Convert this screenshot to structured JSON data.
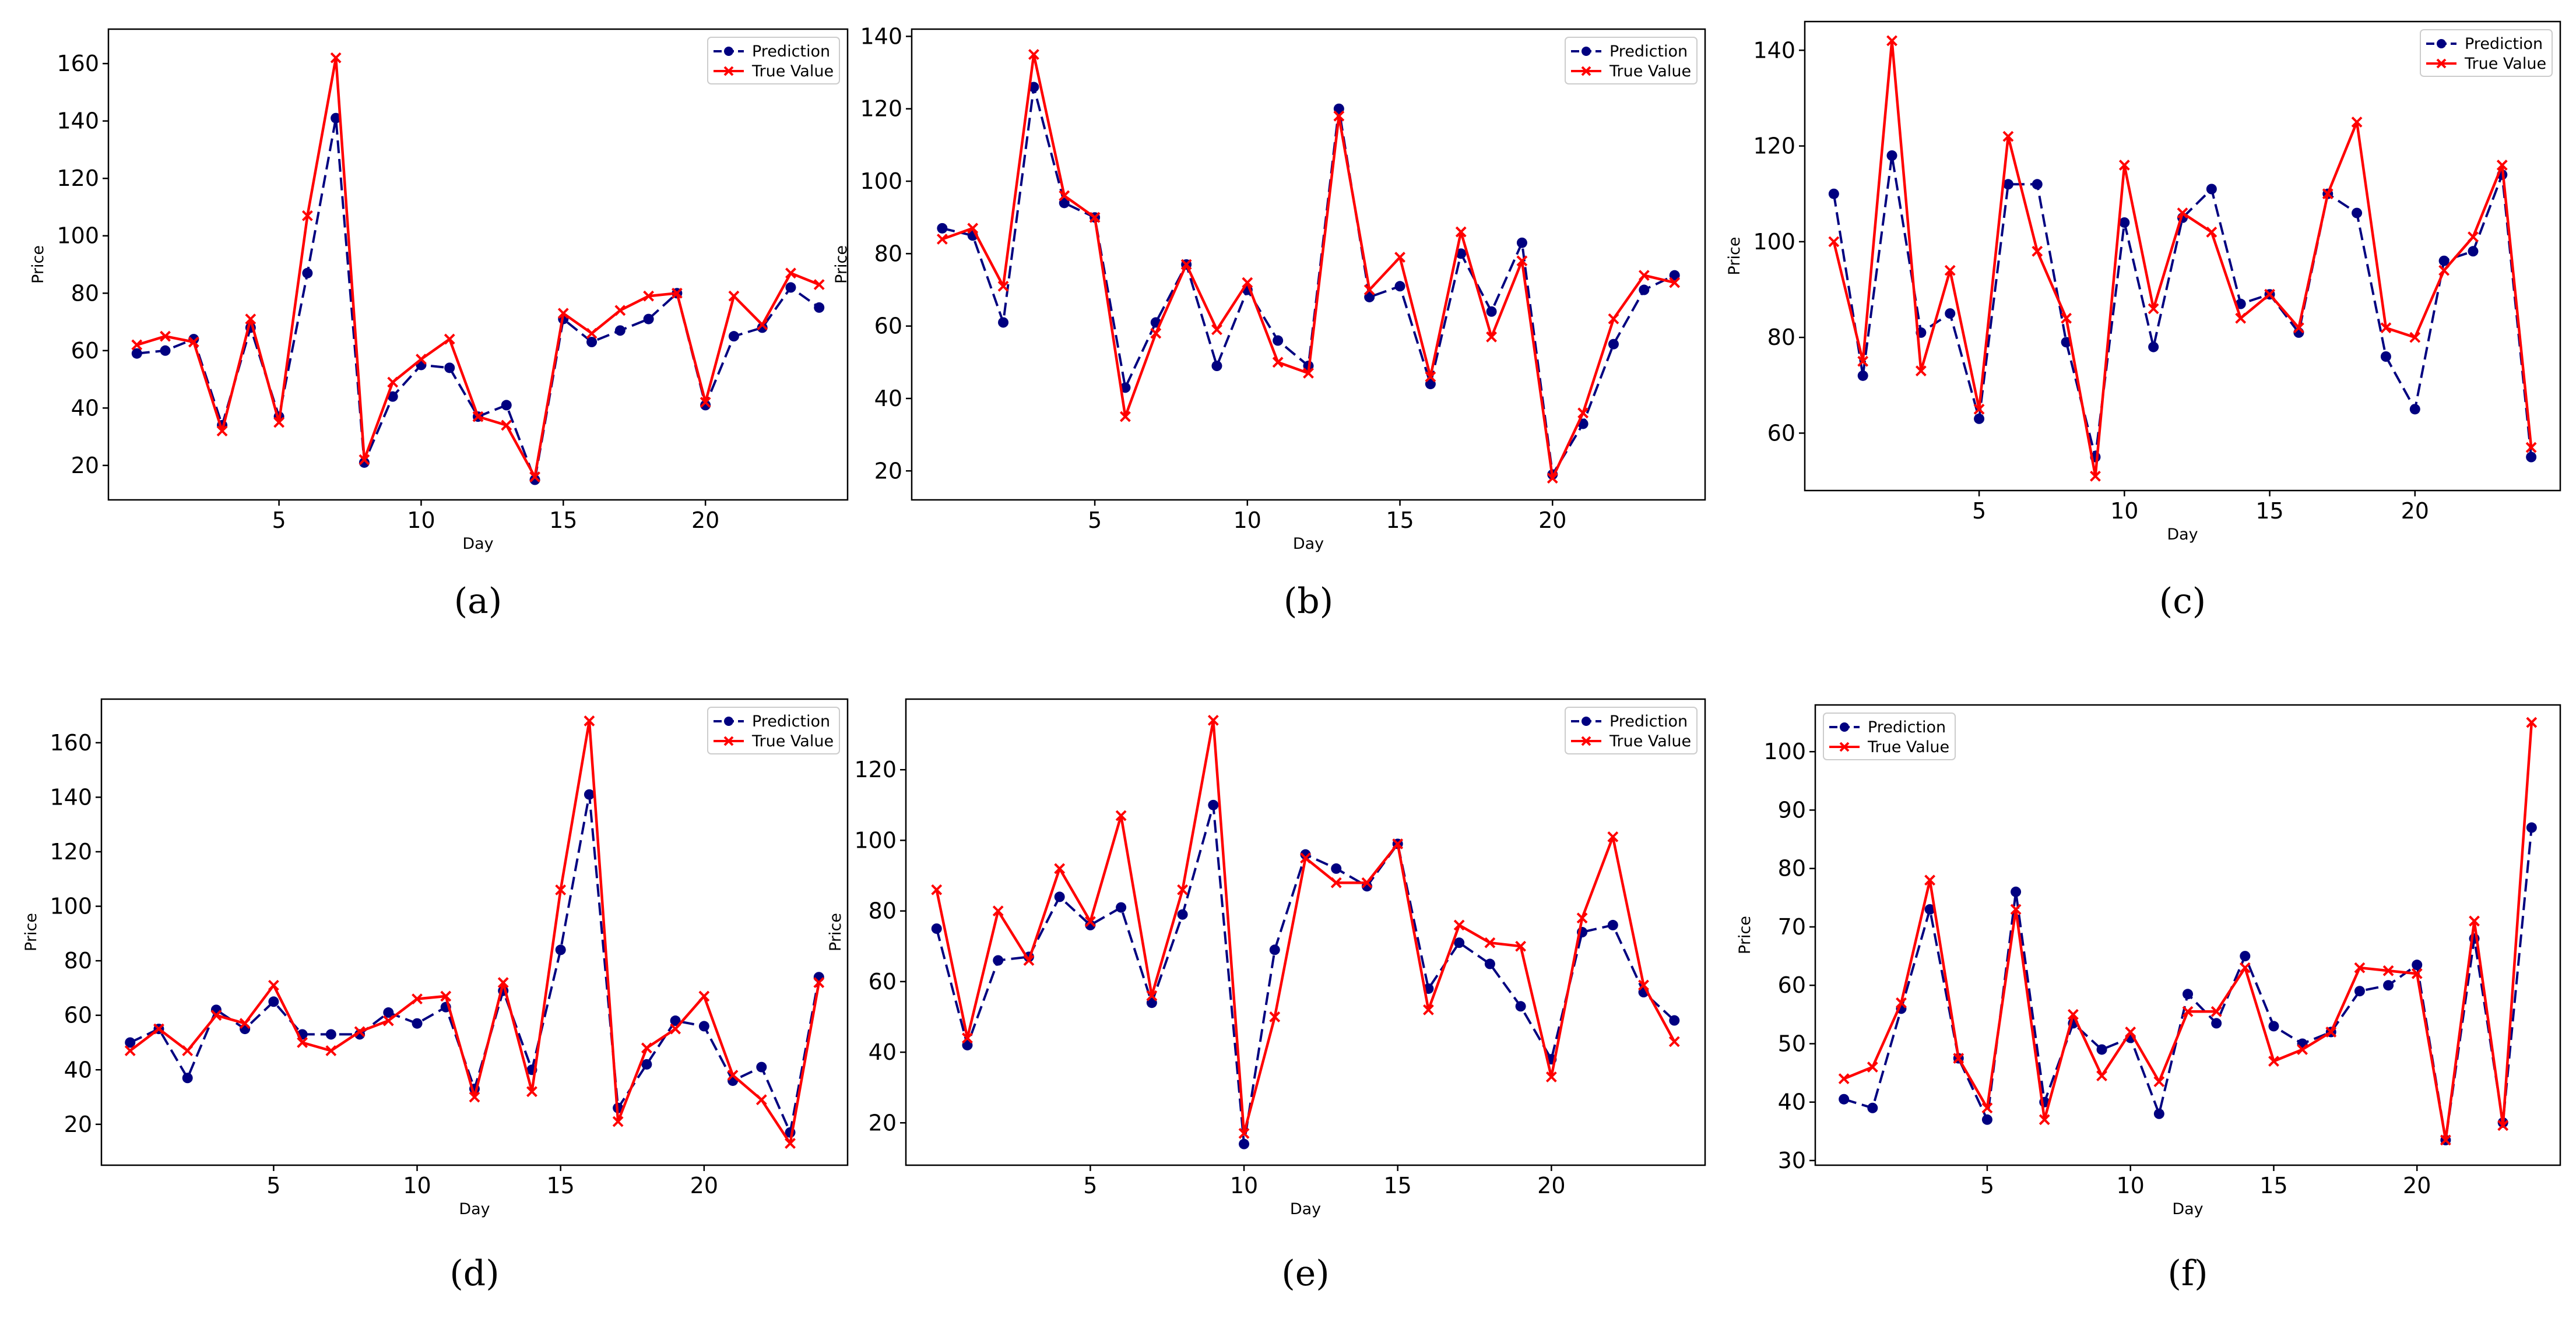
{
  "colors": {
    "prediction": "#000080",
    "true_value": "#ff0000"
  },
  "chart_data": [
    {
      "type": "line",
      "caption": "(a)",
      "caption_letter": "a",
      "legend_position": "top-right",
      "xlabel": "Day",
      "ylabel": "Price",
      "xlim": [
        -1,
        25
      ],
      "ylim": [
        8,
        172
      ],
      "xticks": [
        5,
        10,
        15,
        20
      ],
      "yticks": [
        20,
        40,
        60,
        80,
        100,
        120,
        140,
        160
      ],
      "x": [
        0,
        1,
        2,
        3,
        4,
        5,
        6,
        7,
        8,
        9,
        10,
        11,
        12,
        13,
        14,
        15,
        16,
        17,
        18,
        19,
        20,
        21,
        22,
        23,
        24
      ],
      "series": [
        {
          "name": "Prediction",
          "style": "dashed",
          "marker": "circle",
          "values": [
            59,
            60,
            64,
            34,
            68,
            37,
            87,
            141,
            21,
            44,
            55,
            54,
            37,
            41,
            15,
            71,
            63,
            67,
            71,
            80,
            41,
            65,
            68,
            82,
            75
          ]
        },
        {
          "name": "True Value",
          "style": "solid",
          "marker": "x",
          "values": [
            62,
            65,
            63,
            32,
            71,
            35,
            107,
            162,
            22,
            49,
            57,
            64,
            37,
            34,
            16,
            73,
            66,
            74,
            79,
            80,
            42,
            79,
            69,
            87,
            83
          ]
        }
      ]
    },
    {
      "type": "line",
      "caption": "(b)",
      "caption_letter": "b",
      "legend_position": "top-right",
      "xlabel": "Day",
      "ylabel": "Price",
      "xlim": [
        -1,
        25
      ],
      "ylim": [
        12,
        142
      ],
      "xticks": [
        5,
        10,
        15,
        20
      ],
      "yticks": [
        20,
        40,
        60,
        80,
        100,
        120,
        140
      ],
      "x": [
        0,
        1,
        2,
        3,
        4,
        5,
        6,
        7,
        8,
        9,
        10,
        11,
        12,
        13,
        14,
        15,
        16,
        17,
        18,
        19,
        20,
        21,
        22,
        23,
        24
      ],
      "series": [
        {
          "name": "Prediction",
          "style": "dashed",
          "marker": "circle",
          "values": [
            87,
            85,
            61,
            126,
            94,
            90,
            43,
            61,
            77,
            49,
            70,
            56,
            49,
            120,
            68,
            71,
            44,
            80,
            64,
            83,
            19,
            33,
            55,
            70,
            74
          ]
        },
        {
          "name": "True Value",
          "style": "solid",
          "marker": "x",
          "values": [
            84,
            87,
            71,
            135,
            96,
            90,
            35,
            58,
            77,
            59,
            72,
            50,
            47,
            118,
            70,
            79,
            46,
            86,
            57,
            78,
            18,
            36,
            62,
            74,
            72
          ]
        }
      ]
    },
    {
      "type": "line",
      "caption": "(c)",
      "caption_letter": "c",
      "legend_position": "top-right",
      "xlabel": "Day",
      "ylabel": "Price",
      "xlim": [
        -1,
        25
      ],
      "ylim": [
        48,
        146
      ],
      "xticks": [
        5,
        10,
        15,
        20
      ],
      "yticks": [
        60,
        80,
        100,
        120,
        140
      ],
      "x": [
        0,
        1,
        2,
        3,
        4,
        5,
        6,
        7,
        8,
        9,
        10,
        11,
        12,
        13,
        14,
        15,
        16,
        17,
        18,
        19,
        20,
        21,
        22,
        23,
        24
      ],
      "series": [
        {
          "name": "Prediction",
          "style": "dashed",
          "marker": "circle",
          "values": [
            110,
            72,
            118,
            81,
            85,
            63,
            112,
            112,
            79,
            55,
            104,
            78,
            105,
            111,
            87,
            89,
            81,
            110,
            106,
            76,
            65,
            96,
            98,
            114,
            55
          ]
        },
        {
          "name": "True Value",
          "style": "solid",
          "marker": "x",
          "values": [
            100,
            75,
            142,
            73,
            94,
            65,
            122,
            98,
            84,
            51,
            116,
            86,
            106,
            102,
            84,
            89,
            82,
            110,
            125,
            82,
            80,
            94,
            101,
            116,
            57
          ]
        }
      ]
    },
    {
      "type": "line",
      "caption": "(d)",
      "caption_letter": "d",
      "legend_position": "top-right",
      "xlabel": "Day",
      "ylabel": "Price",
      "xlim": [
        -1,
        25
      ],
      "ylim": [
        5,
        176
      ],
      "xticks": [
        5,
        10,
        15,
        20
      ],
      "yticks": [
        20,
        40,
        60,
        80,
        100,
        120,
        140,
        160
      ],
      "x": [
        0,
        1,
        2,
        3,
        4,
        5,
        6,
        7,
        8,
        9,
        10,
        11,
        12,
        13,
        14,
        15,
        16,
        17,
        18,
        19,
        20,
        21,
        22,
        23,
        24
      ],
      "series": [
        {
          "name": "Prediction",
          "style": "dashed",
          "marker": "circle",
          "values": [
            50,
            55,
            37,
            62,
            55,
            65,
            53,
            53,
            53,
            61,
            57,
            63,
            33,
            69,
            40,
            84,
            141,
            26,
            42,
            58,
            56,
            36,
            41,
            17,
            74
          ]
        },
        {
          "name": "True Value",
          "style": "solid",
          "marker": "x",
          "values": [
            47,
            55,
            47,
            60,
            57,
            71,
            50,
            47,
            54,
            58,
            66,
            67,
            30,
            72,
            32,
            106,
            168,
            21,
            48,
            55,
            67,
            38,
            29,
            13,
            72
          ]
        }
      ]
    },
    {
      "type": "line",
      "caption": "(e)",
      "caption_letter": "e",
      "legend_position": "top-right",
      "xlabel": "Day",
      "ylabel": "Price",
      "xlim": [
        -1,
        25
      ],
      "ylim": [
        8,
        140
      ],
      "xticks": [
        5,
        10,
        15,
        20
      ],
      "yticks": [
        20,
        40,
        60,
        80,
        100,
        120
      ],
      "x": [
        0,
        1,
        2,
        3,
        4,
        5,
        6,
        7,
        8,
        9,
        10,
        11,
        12,
        13,
        14,
        15,
        16,
        17,
        18,
        19,
        20,
        21,
        22,
        23,
        24
      ],
      "series": [
        {
          "name": "Prediction",
          "style": "dashed",
          "marker": "circle",
          "values": [
            75,
            42,
            66,
            67,
            84,
            76,
            81,
            54,
            79,
            110,
            14,
            69,
            96,
            92,
            87,
            99,
            58,
            71,
            65,
            53,
            38,
            74,
            76,
            57,
            49
          ]
        },
        {
          "name": "True Value",
          "style": "solid",
          "marker": "x",
          "values": [
            86,
            44,
            80,
            66,
            92,
            77,
            107,
            56,
            86,
            134,
            17,
            50,
            95,
            88,
            88,
            99,
            52,
            76,
            71,
            70,
            33,
            78,
            101,
            59,
            43
          ]
        }
      ]
    },
    {
      "type": "line",
      "caption": "(f)",
      "caption_letter": "f",
      "legend_position": "top-left",
      "xlabel": "Day",
      "ylabel": "Price",
      "xlim": [
        -1,
        25
      ],
      "ylim": [
        29.2,
        108
      ],
      "xticks": [
        5,
        10,
        15,
        20
      ],
      "yticks": [
        30,
        40,
        50,
        60,
        70,
        80,
        90,
        100
      ],
      "x": [
        0,
        1,
        2,
        3,
        4,
        5,
        6,
        7,
        8,
        9,
        10,
        11,
        12,
        13,
        14,
        15,
        16,
        17,
        18,
        19,
        20,
        21,
        22,
        23,
        24
      ],
      "series": [
        {
          "name": "Prediction",
          "style": "dashed",
          "marker": "circle",
          "values": [
            40.5,
            39,
            56,
            73,
            47.5,
            37,
            76,
            40,
            53.5,
            49,
            51,
            38,
            58.5,
            53.5,
            65,
            53,
            50,
            52,
            59,
            60,
            63.5,
            33.5,
            68,
            36.5,
            87
          ]
        },
        {
          "name": "True Value",
          "style": "solid",
          "marker": "x",
          "values": [
            44,
            46,
            57,
            78,
            47.5,
            39,
            73,
            37,
            55,
            44.5,
            52,
            43.5,
            55.5,
            55.5,
            63,
            47,
            49,
            52,
            63,
            62.5,
            62,
            33.5,
            71,
            36,
            105
          ]
        }
      ]
    }
  ]
}
